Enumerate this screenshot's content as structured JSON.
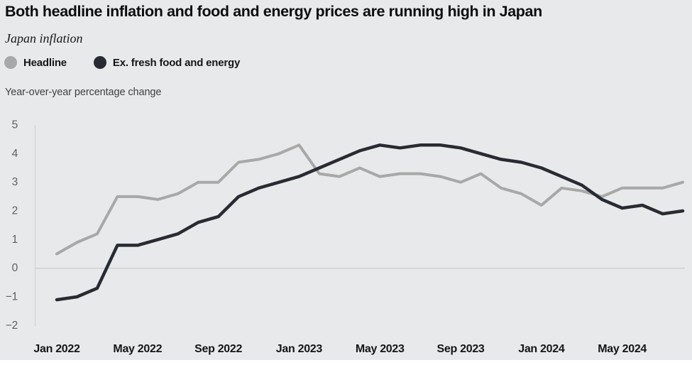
{
  "page": {
    "background_color": "#e8e9ea",
    "bottom_strip_color": "#ffffff"
  },
  "header": {
    "title": "Both headline inflation and food and energy prices are running high in Japan",
    "subtitle": "Japan inflation",
    "unit_label": "Year-over-year percentage change"
  },
  "legend": [
    {
      "label": "Headline",
      "color": "#a8a8a8"
    },
    {
      "label": "Ex. fresh food and energy",
      "color": "#272b33"
    }
  ],
  "chart_data": {
    "type": "line",
    "title": "Both headline inflation and food and energy prices are running high in Japan",
    "subtitle": "Japan inflation",
    "ylabel": "Year-over-year percentage change",
    "xlabel": "",
    "ylim": [
      -2,
      5
    ],
    "yticks": [
      5,
      4,
      3,
      2,
      1,
      0,
      -1,
      -2
    ],
    "grid": "zero-baseline-only",
    "legend_position": "top-left",
    "x": [
      "Jan 2022",
      "Feb 2022",
      "Mar 2022",
      "Apr 2022",
      "May 2022",
      "Jun 2022",
      "Jul 2022",
      "Aug 2022",
      "Sep 2022",
      "Oct 2022",
      "Nov 2022",
      "Dec 2022",
      "Jan 2023",
      "Feb 2023",
      "Mar 2023",
      "Apr 2023",
      "May 2023",
      "Jun 2023",
      "Jul 2023",
      "Aug 2023",
      "Sep 2023",
      "Oct 2023",
      "Nov 2023",
      "Dec 2023",
      "Jan 2024",
      "Feb 2024",
      "Mar 2024",
      "Apr 2024",
      "May 2024",
      "Jun 2024",
      "Jul 2024",
      "Aug 2024"
    ],
    "xtick_labels": [
      "Jan 2022",
      "May 2022",
      "Sep 2022",
      "Jan 2023",
      "May 2023",
      "Sep 2023",
      "Jan 2024",
      "May 2024"
    ],
    "xtick_indices": [
      0,
      4,
      8,
      12,
      16,
      20,
      24,
      28
    ],
    "series": [
      {
        "name": "Headline",
        "color": "#a8a8a8",
        "stroke_width": 4,
        "values": [
          0.5,
          0.9,
          1.2,
          2.5,
          2.5,
          2.4,
          2.6,
          3.0,
          3.0,
          3.7,
          3.8,
          4.0,
          4.3,
          3.3,
          3.2,
          3.5,
          3.2,
          3.3,
          3.3,
          3.2,
          3.0,
          3.3,
          2.8,
          2.6,
          2.2,
          2.8,
          2.7,
          2.5,
          2.8,
          2.8,
          2.8,
          3.0
        ]
      },
      {
        "name": "Ex. fresh food and energy",
        "color": "#272b33",
        "stroke_width": 4.5,
        "values": [
          -1.1,
          -1.0,
          -0.7,
          0.8,
          0.8,
          1.0,
          1.2,
          1.6,
          1.8,
          2.5,
          2.8,
          3.0,
          3.2,
          3.5,
          3.8,
          4.1,
          4.3,
          4.2,
          4.3,
          4.3,
          4.2,
          4.0,
          3.8,
          3.7,
          3.5,
          3.2,
          2.9,
          2.4,
          2.1,
          2.2,
          1.9,
          2.0
        ]
      }
    ],
    "axis_style": {
      "axis_line_color": "#d5d6d7",
      "ytick_text_color": "#5e5f61",
      "xtick_text_color": "#141516"
    }
  }
}
